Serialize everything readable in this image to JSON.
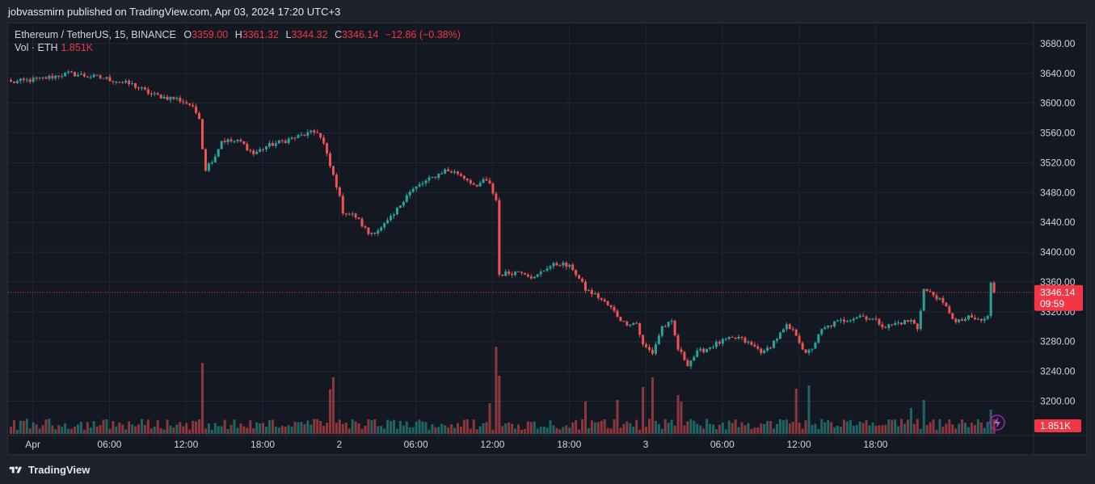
{
  "header": {
    "publish_text": "jobvassmirn published on TradingView.com, Apr 03, 2024 17:20 UTC+3"
  },
  "legend": {
    "symbol": "Ethereum / TetherUS, 15, BINANCE",
    "open_label": "O",
    "open": "3359.00",
    "high_label": "H",
    "high": "3361.32",
    "low_label": "L",
    "low": "3344.32",
    "close_label": "C",
    "close": "3346.14",
    "change": "−12.86 (−0.38%)",
    "volume_label": "Vol · ETH",
    "volume": "1.851K"
  },
  "price_tag": {
    "price": "3346.14",
    "countdown": "09:59"
  },
  "volume_tag": "1.851K",
  "footer": {
    "brand": "TradingView"
  },
  "colors": {
    "up": "#26a69a",
    "down": "#ef5350",
    "background": "#141823",
    "grid": "#232733",
    "text": "#d1d4dc"
  },
  "icons": {
    "alert": "lightning-icon",
    "logo": "tradingview-logo-icon"
  },
  "chart_data": {
    "type": "candlestick",
    "symbol": "Ethereum / TetherUS",
    "interval": "15",
    "exchange": "BINANCE",
    "yticks": [
      "3680.00",
      "3640.00",
      "3600.00",
      "3560.00",
      "3520.00",
      "3480.00",
      "3440.00",
      "3400.00",
      "3360.00",
      "3320.00",
      "3280.00",
      "3240.00",
      "3200.00"
    ],
    "ylim": [
      3180,
      3700
    ],
    "xtick_labels": [
      "Apr",
      "06:00",
      "12:00",
      "18:00",
      "2",
      "06:00",
      "12:00",
      "18:00",
      "3",
      "06:00",
      "12:00",
      "18:00"
    ],
    "grid": true,
    "last_price": 3346.14,
    "close_anchors": [
      [
        0,
        3628
      ],
      [
        10,
        3633
      ],
      [
        18,
        3640
      ],
      [
        30,
        3633
      ],
      [
        38,
        3625
      ],
      [
        44,
        3612
      ],
      [
        48,
        3608
      ],
      [
        52,
        3606
      ],
      [
        56,
        3598
      ],
      [
        59,
        3582
      ],
      [
        60,
        3540
      ],
      [
        61,
        3512
      ],
      [
        64,
        3530
      ],
      [
        66,
        3550
      ],
      [
        72,
        3548
      ],
      [
        76,
        3532
      ],
      [
        80,
        3542
      ],
      [
        86,
        3550
      ],
      [
        92,
        3558
      ],
      [
        96,
        3562
      ],
      [
        98,
        3545
      ],
      [
        100,
        3515
      ],
      [
        102,
        3490
      ],
      [
        104,
        3455
      ],
      [
        108,
        3448
      ],
      [
        112,
        3425
      ],
      [
        116,
        3432
      ],
      [
        120,
        3450
      ],
      [
        124,
        3478
      ],
      [
        128,
        3490
      ],
      [
        132,
        3500
      ],
      [
        136,
        3510
      ],
      [
        140,
        3506
      ],
      [
        144,
        3495
      ],
      [
        146,
        3485
      ],
      [
        148,
        3498
      ],
      [
        150,
        3490
      ],
      [
        152,
        3470
      ],
      [
        153,
        3370
      ],
      [
        156,
        3372
      ],
      [
        160,
        3375
      ],
      [
        164,
        3365
      ],
      [
        168,
        3380
      ],
      [
        172,
        3385
      ],
      [
        176,
        3378
      ],
      [
        180,
        3350
      ],
      [
        184,
        3340
      ],
      [
        188,
        3325
      ],
      [
        192,
        3305
      ],
      [
        196,
        3305
      ],
      [
        198,
        3275
      ],
      [
        201,
        3265
      ],
      [
        204,
        3300
      ],
      [
        207,
        3305
      ],
      [
        209,
        3270
      ],
      [
        212,
        3250
      ],
      [
        215,
        3265
      ],
      [
        220,
        3275
      ],
      [
        224,
        3282
      ],
      [
        228,
        3285
      ],
      [
        232,
        3275
      ],
      [
        236,
        3265
      ],
      [
        240,
        3285
      ],
      [
        243,
        3300
      ],
      [
        246,
        3290
      ],
      [
        249,
        3262
      ],
      [
        251,
        3272
      ],
      [
        254,
        3295
      ],
      [
        258,
        3305
      ],
      [
        262,
        3310
      ],
      [
        266,
        3315
      ],
      [
        270,
        3310
      ],
      [
        274,
        3300
      ],
      [
        278,
        3305
      ],
      [
        282,
        3308
      ],
      [
        284,
        3298
      ],
      [
        286,
        3350
      ],
      [
        290,
        3340
      ],
      [
        294,
        3320
      ],
      [
        296,
        3305
      ],
      [
        300,
        3312
      ],
      [
        304,
        3308
      ],
      [
        306,
        3313
      ],
      [
        307,
        3359
      ],
      [
        308,
        3346
      ]
    ],
    "volume_spikes": [
      [
        60,
        88
      ],
      [
        100,
        55
      ],
      [
        101,
        70
      ],
      [
        150,
        38
      ],
      [
        152,
        108
      ],
      [
        153,
        72
      ],
      [
        180,
        40
      ],
      [
        190,
        42
      ],
      [
        198,
        58
      ],
      [
        201,
        70
      ],
      [
        209,
        48
      ],
      [
        210,
        40
      ],
      [
        246,
        56
      ],
      [
        250,
        60
      ],
      [
        282,
        32
      ],
      [
        286,
        42
      ],
      [
        307,
        30
      ],
      [
        308,
        18
      ]
    ]
  }
}
